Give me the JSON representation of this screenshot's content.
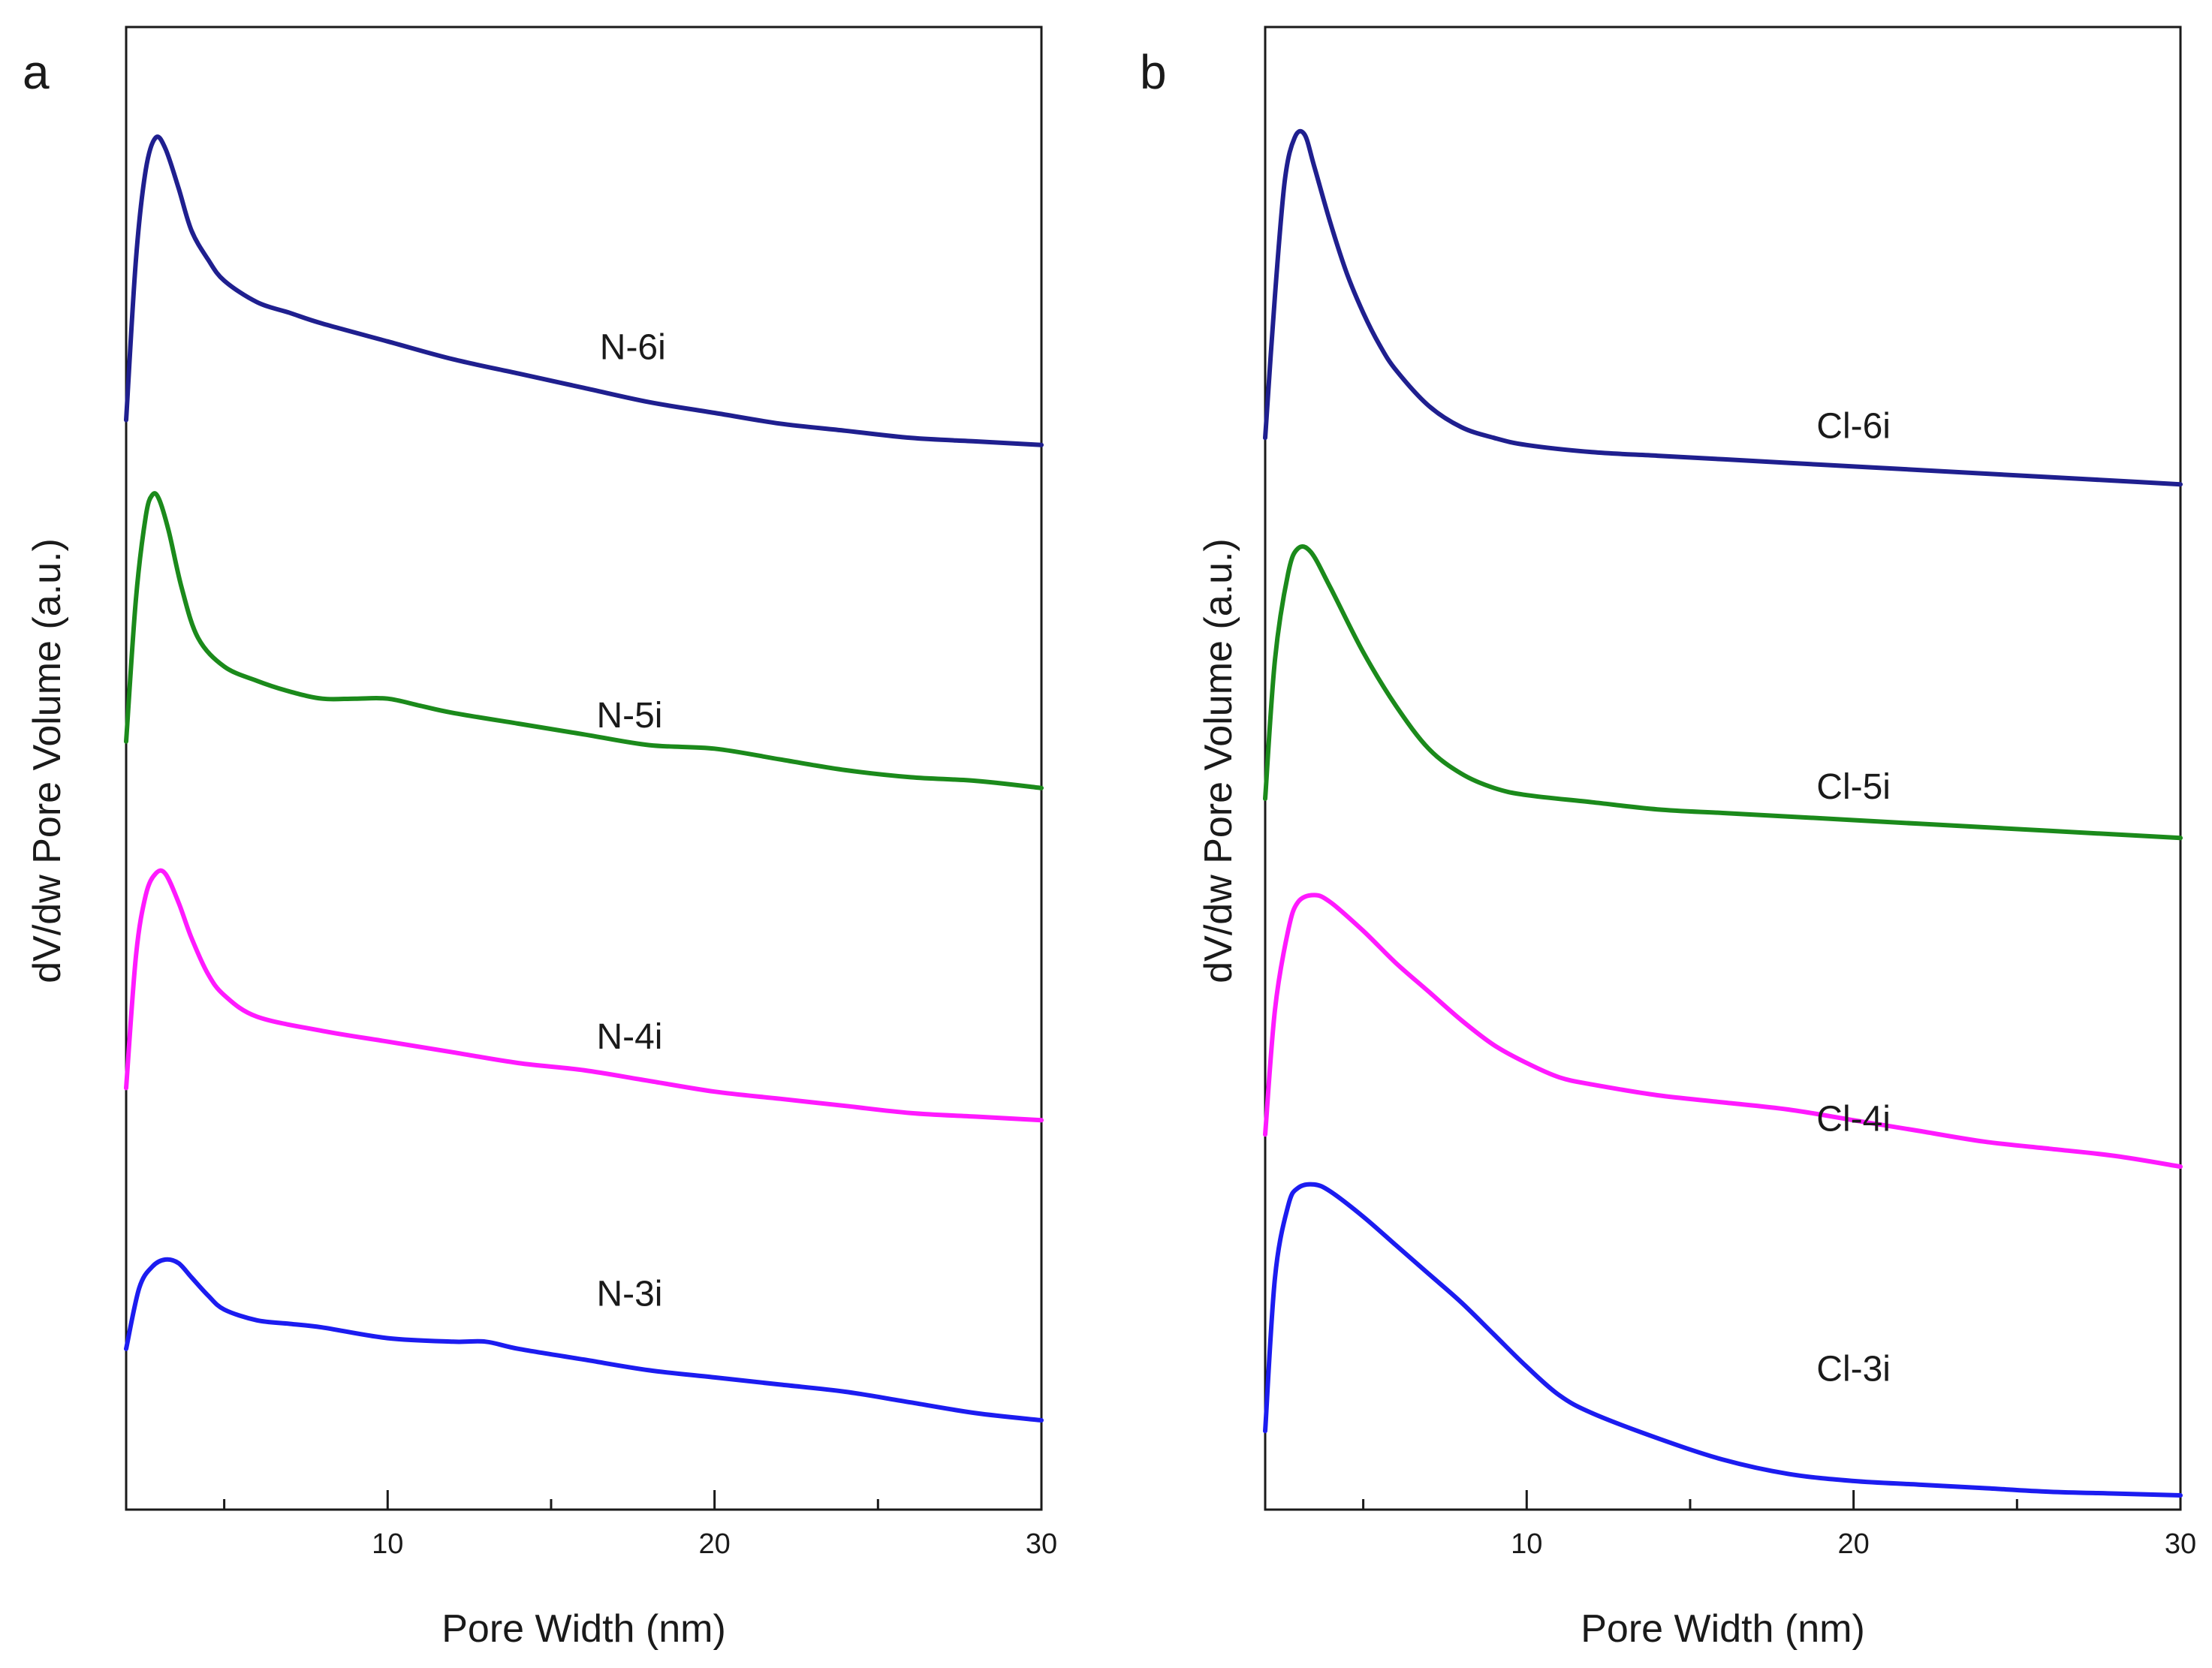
{
  "chart_data": [
    {
      "panel": "a",
      "type": "line",
      "xlabel": "Pore Width (nm)",
      "ylabel": "dV/dw Pore Volume (a.u.)",
      "xlim": [
        2,
        30
      ],
      "ylim": [
        0,
        4.15
      ],
      "xticks": [
        10,
        20,
        30
      ],
      "xminor": [
        5,
        15,
        25
      ],
      "grid": false,
      "series": [
        {
          "name": "N-6i",
          "color": "#1f1f8f",
          "label_at": [
            17.5,
            3.22
          ],
          "points": [
            [
              2.0,
              3.05
            ],
            [
              2.3,
              3.5
            ],
            [
              2.6,
              3.75
            ],
            [
              2.9,
              3.84
            ],
            [
              3.2,
              3.81
            ],
            [
              3.6,
              3.7
            ],
            [
              4.0,
              3.58
            ],
            [
              4.5,
              3.5
            ],
            [
              5.0,
              3.44
            ],
            [
              6.0,
              3.38
            ],
            [
              7.0,
              3.35
            ],
            [
              8.0,
              3.32
            ],
            [
              10.0,
              3.27
            ],
            [
              12.0,
              3.22
            ],
            [
              14.0,
              3.18
            ],
            [
              16.0,
              3.14
            ],
            [
              18.0,
              3.1
            ],
            [
              20.0,
              3.07
            ],
            [
              22.0,
              3.04
            ],
            [
              24.0,
              3.02
            ],
            [
              26.0,
              3.0
            ],
            [
              28.0,
              2.99
            ],
            [
              30.0,
              2.98
            ]
          ]
        },
        {
          "name": "N-5i",
          "color": "#1b8a1b",
          "label_at": [
            17.4,
            2.19
          ],
          "points": [
            [
              2.0,
              2.15
            ],
            [
              2.3,
              2.55
            ],
            [
              2.6,
              2.78
            ],
            [
              2.8,
              2.84
            ],
            [
              3.0,
              2.83
            ],
            [
              3.3,
              2.74
            ],
            [
              3.7,
              2.58
            ],
            [
              4.2,
              2.44
            ],
            [
              5.0,
              2.36
            ],
            [
              6.0,
              2.32
            ],
            [
              7.0,
              2.29
            ],
            [
              8.0,
              2.27
            ],
            [
              9.0,
              2.27
            ],
            [
              10.0,
              2.27
            ],
            [
              11.0,
              2.25
            ],
            [
              12.0,
              2.23
            ],
            [
              14.0,
              2.2
            ],
            [
              16.0,
              2.17
            ],
            [
              18.0,
              2.14
            ],
            [
              20.0,
              2.13
            ],
            [
              22.0,
              2.1
            ],
            [
              24.0,
              2.07
            ],
            [
              26.0,
              2.05
            ],
            [
              28.0,
              2.04
            ],
            [
              30.0,
              2.02
            ]
          ]
        },
        {
          "name": "N-4i",
          "color": "#ff1aff",
          "label_at": [
            17.4,
            1.29
          ],
          "points": [
            [
              2.0,
              1.18
            ],
            [
              2.3,
              1.55
            ],
            [
              2.6,
              1.72
            ],
            [
              2.9,
              1.78
            ],
            [
              3.2,
              1.78
            ],
            [
              3.6,
              1.7
            ],
            [
              4.0,
              1.6
            ],
            [
              4.5,
              1.5
            ],
            [
              5.0,
              1.44
            ],
            [
              6.0,
              1.38
            ],
            [
              8.0,
              1.34
            ],
            [
              10.0,
              1.31
            ],
            [
              12.0,
              1.28
            ],
            [
              14.0,
              1.25
            ],
            [
              16.0,
              1.23
            ],
            [
              18.0,
              1.2
            ],
            [
              20.0,
              1.17
            ],
            [
              22.0,
              1.15
            ],
            [
              24.0,
              1.13
            ],
            [
              26.0,
              1.11
            ],
            [
              28.0,
              1.1
            ],
            [
              30.0,
              1.09
            ]
          ]
        },
        {
          "name": "N-3i",
          "color": "#1c1cf0",
          "label_at": [
            17.4,
            0.57
          ],
          "points": [
            [
              2.0,
              0.45
            ],
            [
              2.4,
              0.62
            ],
            [
              2.8,
              0.68
            ],
            [
              3.2,
              0.7
            ],
            [
              3.6,
              0.69
            ],
            [
              4.0,
              0.65
            ],
            [
              4.5,
              0.6
            ],
            [
              5.0,
              0.56
            ],
            [
              6.0,
              0.53
            ],
            [
              7.0,
              0.52
            ],
            [
              8.0,
              0.51
            ],
            [
              10.0,
              0.48
            ],
            [
              12.0,
              0.47
            ],
            [
              13.0,
              0.47
            ],
            [
              14.0,
              0.45
            ],
            [
              16.0,
              0.42
            ],
            [
              18.0,
              0.39
            ],
            [
              20.0,
              0.37
            ],
            [
              22.0,
              0.35
            ],
            [
              24.0,
              0.33
            ],
            [
              26.0,
              0.3
            ],
            [
              28.0,
              0.27
            ],
            [
              30.0,
              0.25
            ]
          ]
        }
      ]
    },
    {
      "panel": "b",
      "type": "line",
      "xlabel": "Pore Width (nm)",
      "ylabel": "dV/dw Pore Volume (a.u.)",
      "xlim": [
        2,
        30
      ],
      "ylim": [
        0,
        4.15
      ],
      "xticks": [
        10,
        20,
        30
      ],
      "xminor": [
        5,
        15,
        25
      ],
      "grid": false,
      "series": [
        {
          "name": "Cl-6i",
          "color": "#1f1f8f",
          "label_at": [
            20.0,
            3.0
          ],
          "points": [
            [
              2.0,
              3.0
            ],
            [
              2.3,
              3.4
            ],
            [
              2.6,
              3.72
            ],
            [
              2.9,
              3.84
            ],
            [
              3.2,
              3.85
            ],
            [
              3.5,
              3.76
            ],
            [
              4.0,
              3.6
            ],
            [
              4.5,
              3.46
            ],
            [
              5.0,
              3.35
            ],
            [
              5.5,
              3.26
            ],
            [
              6.0,
              3.19
            ],
            [
              7.0,
              3.09
            ],
            [
              8.0,
              3.03
            ],
            [
              9.0,
              3.0
            ],
            [
              10.0,
              2.98
            ],
            [
              12.0,
              2.96
            ],
            [
              14.0,
              2.95
            ],
            [
              16.0,
              2.94
            ],
            [
              18.0,
              2.93
            ],
            [
              20.0,
              2.92
            ],
            [
              22.0,
              2.91
            ],
            [
              24.0,
              2.9
            ],
            [
              26.0,
              2.89
            ],
            [
              28.0,
              2.88
            ],
            [
              30.0,
              2.87
            ]
          ]
        },
        {
          "name": "Cl-5i",
          "color": "#1b8a1b",
          "label_at": [
            20.0,
            1.99
          ],
          "points": [
            [
              2.0,
              1.99
            ],
            [
              2.3,
              2.38
            ],
            [
              2.7,
              2.62
            ],
            [
              3.0,
              2.69
            ],
            [
              3.4,
              2.68
            ],
            [
              4.0,
              2.58
            ],
            [
              5.0,
              2.4
            ],
            [
              6.0,
              2.25
            ],
            [
              7.0,
              2.13
            ],
            [
              8.0,
              2.06
            ],
            [
              9.0,
              2.02
            ],
            [
              10.0,
              2.0
            ],
            [
              12.0,
              1.98
            ],
            [
              14.0,
              1.96
            ],
            [
              16.0,
              1.95
            ],
            [
              18.0,
              1.94
            ],
            [
              20.0,
              1.93
            ],
            [
              22.0,
              1.92
            ],
            [
              24.0,
              1.91
            ],
            [
              26.0,
              1.9
            ],
            [
              28.0,
              1.89
            ],
            [
              30.0,
              1.88
            ]
          ]
        },
        {
          "name": "Cl-4i",
          "color": "#ff1aff",
          "label_at": [
            20.0,
            1.06
          ],
          "points": [
            [
              2.0,
              1.05
            ],
            [
              2.3,
              1.4
            ],
            [
              2.7,
              1.62
            ],
            [
              3.0,
              1.7
            ],
            [
              3.5,
              1.72
            ],
            [
              4.0,
              1.7
            ],
            [
              5.0,
              1.62
            ],
            [
              6.0,
              1.53
            ],
            [
              7.0,
              1.45
            ],
            [
              8.0,
              1.37
            ],
            [
              9.0,
              1.3
            ],
            [
              10.0,
              1.25
            ],
            [
              11.0,
              1.21
            ],
            [
              12.0,
              1.19
            ],
            [
              14.0,
              1.16
            ],
            [
              16.0,
              1.14
            ],
            [
              18.0,
              1.12
            ],
            [
              20.0,
              1.09
            ],
            [
              22.0,
              1.06
            ],
            [
              24.0,
              1.03
            ],
            [
              26.0,
              1.01
            ],
            [
              28.0,
              0.99
            ],
            [
              30.0,
              0.96
            ]
          ]
        },
        {
          "name": "Cl-3i",
          "color": "#1c1cf0",
          "label_at": [
            20.0,
            0.36
          ],
          "points": [
            [
              2.0,
              0.22
            ],
            [
              2.3,
              0.65
            ],
            [
              2.7,
              0.85
            ],
            [
              3.0,
              0.9
            ],
            [
              3.5,
              0.91
            ],
            [
              4.0,
              0.89
            ],
            [
              5.0,
              0.82
            ],
            [
              6.0,
              0.74
            ],
            [
              7.0,
              0.66
            ],
            [
              8.0,
              0.58
            ],
            [
              9.0,
              0.49
            ],
            [
              10.0,
              0.4
            ],
            [
              11.0,
              0.32
            ],
            [
              12.0,
              0.27
            ],
            [
              14.0,
              0.2
            ],
            [
              16.0,
              0.14
            ],
            [
              18.0,
              0.1
            ],
            [
              20.0,
              0.08
            ],
            [
              22.0,
              0.07
            ],
            [
              24.0,
              0.06
            ],
            [
              26.0,
              0.05
            ],
            [
              28.0,
              0.045
            ],
            [
              30.0,
              0.04
            ]
          ]
        }
      ]
    }
  ]
}
